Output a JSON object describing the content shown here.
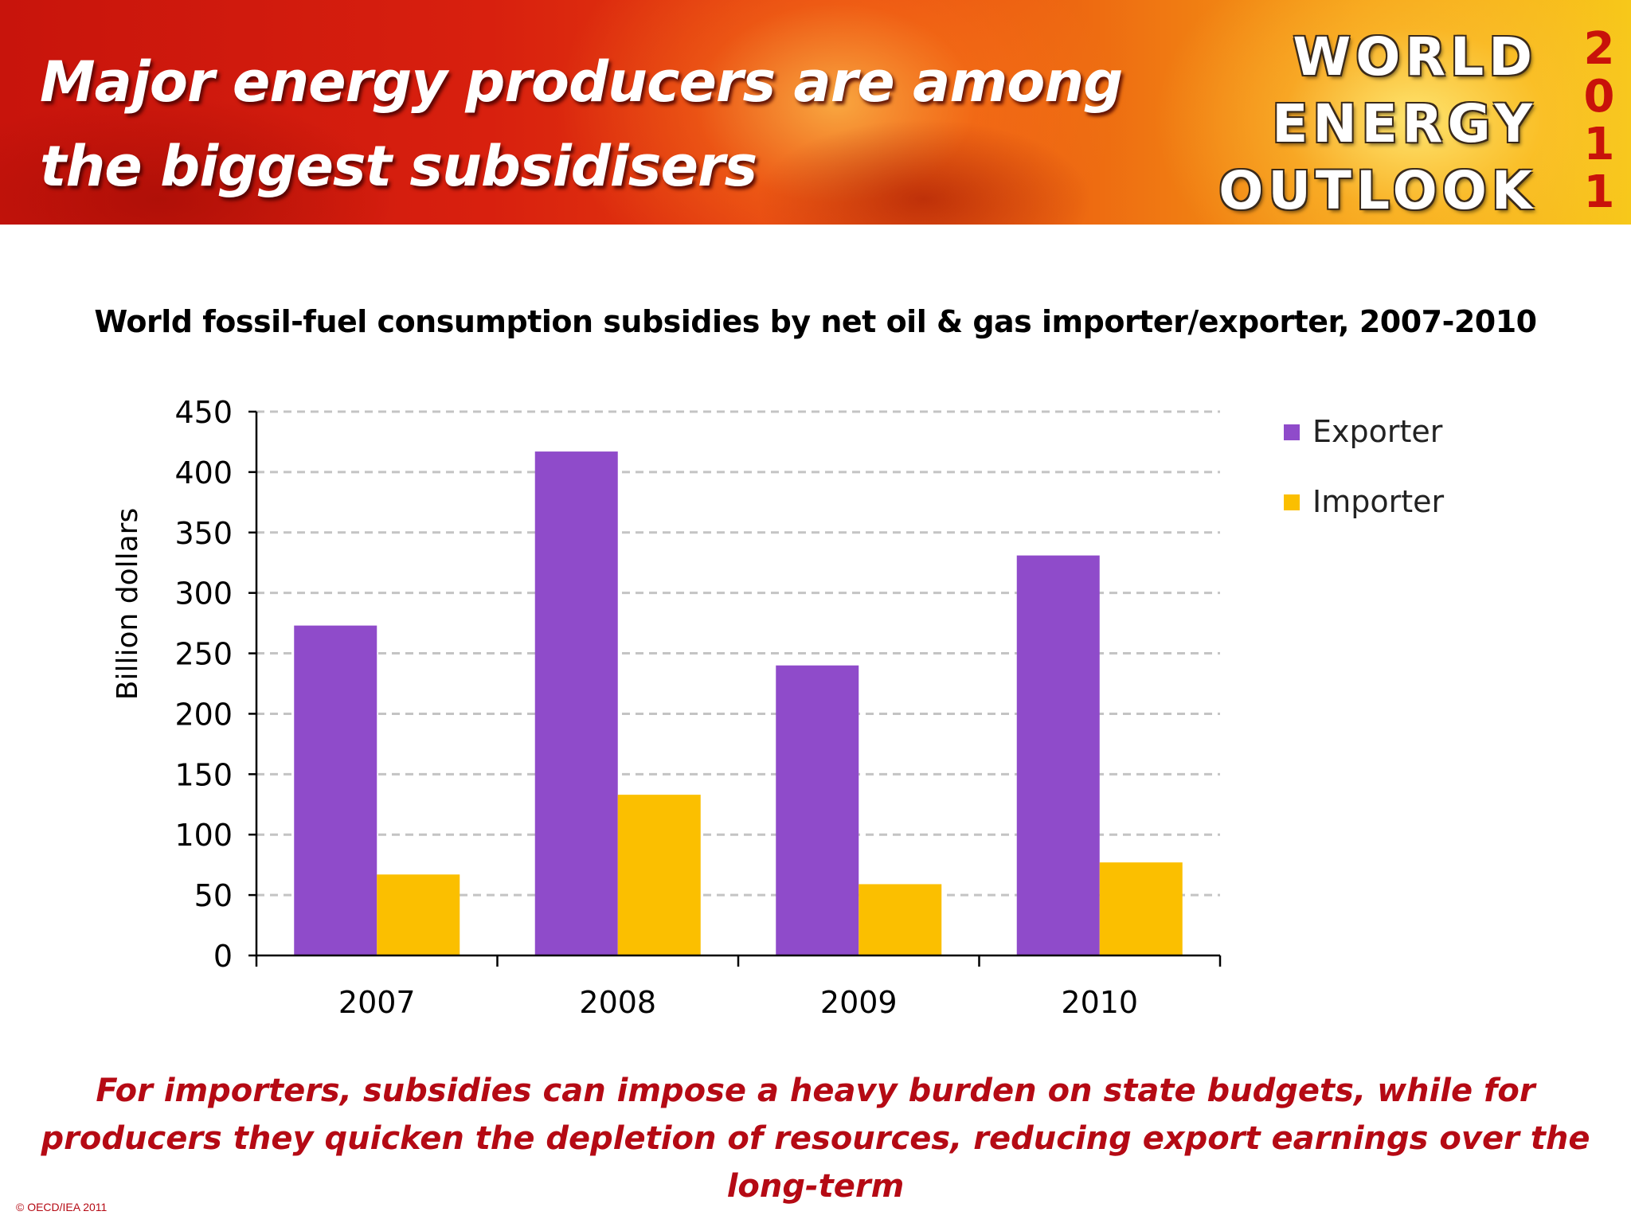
{
  "slide": {
    "headline": "Major energy producers are among the biggest subsidisers",
    "logo_lines": [
      "WORLD",
      "ENERGY",
      "OUTLOOK"
    ],
    "logo_year_digits": [
      "2",
      "0",
      "1",
      "1"
    ],
    "footnote": "For importers, subsidies can impose a heavy burden on state budgets, while for producers they quicken the depletion of resources, reducing export earnings over the long-term",
    "copyright": "© OECD/IEA 2011"
  },
  "colors": {
    "exporter": "#8f4bca",
    "importer": "#fbbf00",
    "footnote": "#b50a14"
  },
  "chart_data": {
    "type": "bar",
    "title": "World fossil-fuel consumption subsidies by net oil & gas importer/exporter, 2007-2010",
    "xlabel": "",
    "ylabel": "Billion dollars",
    "categories": [
      "2007",
      "2008",
      "2009",
      "2010"
    ],
    "series": [
      {
        "name": "Exporter",
        "values": [
          273,
          417,
          240,
          331
        ]
      },
      {
        "name": "Importer",
        "values": [
          67,
          133,
          59,
          77
        ]
      }
    ],
    "ylim": [
      0,
      450
    ],
    "yticks": [
      0,
      50,
      100,
      150,
      200,
      250,
      300,
      350,
      400,
      450
    ],
    "grid": true,
    "legend_position": "right"
  }
}
